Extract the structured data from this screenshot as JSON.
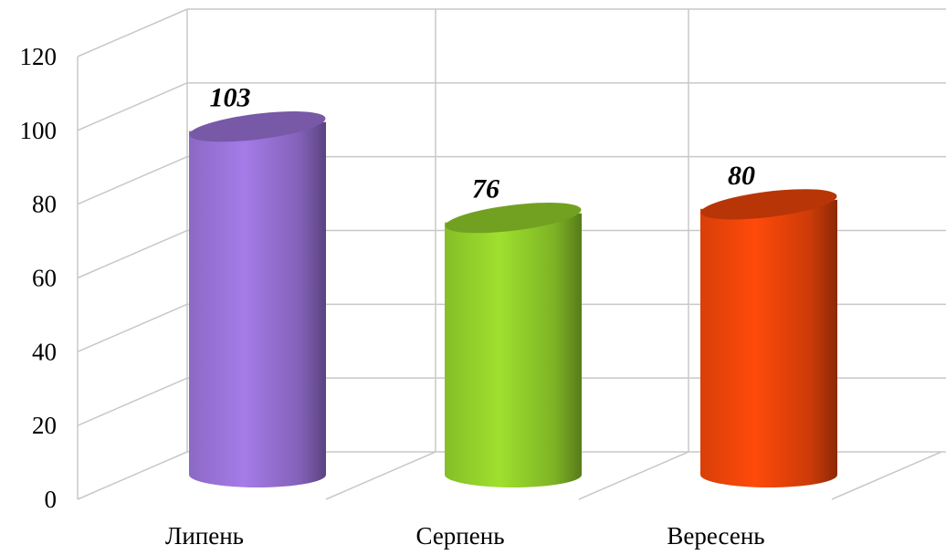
{
  "chart_data": {
    "type": "bar",
    "style": "3d-cylinder",
    "categories": [
      "Липень",
      "Серпень",
      "Вересень"
    ],
    "values": [
      103,
      76,
      80
    ],
    "data_labels": [
      "103",
      "76",
      "80"
    ],
    "colors": [
      "#a57be8",
      "#9ee02e",
      "#ff4a0a"
    ],
    "ylim": [
      0,
      120
    ],
    "yticks": [
      "0",
      "20",
      "40",
      "60",
      "80",
      "100",
      "120"
    ],
    "grid": true,
    "legend": "none"
  }
}
